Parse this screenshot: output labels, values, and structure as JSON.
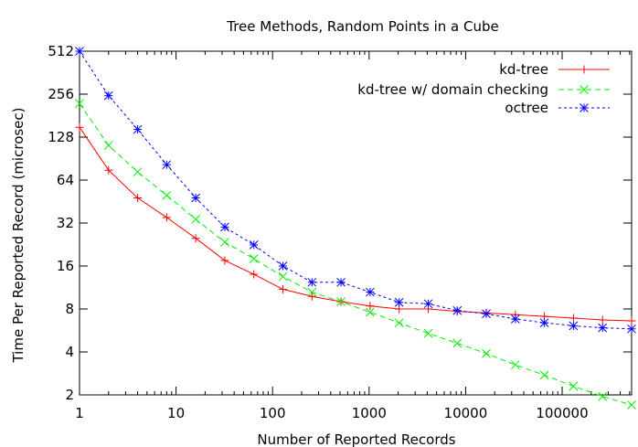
{
  "chart_data": {
    "type": "line",
    "title": "Tree Methods, Random Points in a Cube",
    "xlabel": "Number of Reported Records",
    "ylabel": "Time Per Reported Record (microsec)",
    "x_scale": "log10",
    "y_scale": "log2",
    "xlim": [
      1,
      524288
    ],
    "ylim": [
      2,
      512
    ],
    "x_ticks": [
      1,
      10,
      100,
      1000,
      10000,
      100000
    ],
    "x_tick_labels": [
      "1",
      "10",
      "100",
      "1000",
      "10000",
      "100000"
    ],
    "y_ticks": [
      2,
      4,
      8,
      16,
      32,
      64,
      128,
      256,
      512
    ],
    "y_tick_labels": [
      "2",
      "4",
      "8",
      "16",
      "32",
      "64",
      "128",
      "256",
      "512"
    ],
    "grid": false,
    "legend_position": "top-right",
    "x": [
      1,
      2,
      4,
      8,
      16,
      32,
      64,
      128,
      256,
      512,
      1024,
      2048,
      4096,
      8192,
      16384,
      32768,
      65536,
      131072,
      262144,
      524288
    ],
    "series": [
      {
        "name": "kd-tree",
        "color": "#ff0000",
        "dash": "solid",
        "marker": "plus",
        "values": [
          150,
          75,
          48,
          35,
          25,
          17.5,
          14,
          11,
          9.8,
          9,
          8.4,
          8,
          8,
          7.7,
          7.5,
          7.3,
          7.1,
          6.9,
          6.7,
          6.6
        ]
      },
      {
        "name": "kd-tree w/ domain checking",
        "color": "#00ee00",
        "dash": "dashed",
        "marker": "cross",
        "values": [
          220,
          112,
          73,
          50,
          34,
          23.5,
          18,
          13.5,
          10.5,
          9,
          7.6,
          6.4,
          5.4,
          4.6,
          3.9,
          3.25,
          2.75,
          2.3,
          1.95,
          1.7
        ]
      },
      {
        "name": "octree",
        "color": "#0000ff",
        "dash": "dotted",
        "marker": "star",
        "values": [
          512,
          250,
          145,
          82,
          48,
          30,
          22.5,
          16,
          12.3,
          12.3,
          10.5,
          8.9,
          8.7,
          7.8,
          7.4,
          6.8,
          6.4,
          6.1,
          5.9,
          5.8
        ]
      }
    ]
  }
}
